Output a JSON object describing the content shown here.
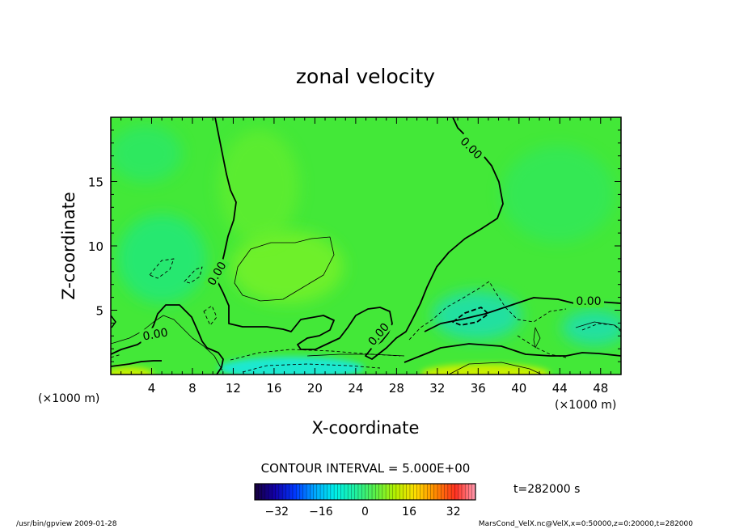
{
  "chart_data": {
    "type": "heatmap",
    "title": "zonal velocity",
    "xlabel": "X-coordinate",
    "ylabel": "Z-coordinate",
    "x_unit_label": "(×1000 m)",
    "z_unit_label": "(×1000 m)",
    "xlim": [
      0,
      50
    ],
    "zlim": [
      0,
      20
    ],
    "x_ticks": [
      4,
      8,
      12,
      16,
      20,
      24,
      28,
      32,
      36,
      40,
      44,
      48
    ],
    "z_ticks": [
      5,
      10,
      15
    ],
    "contour_interval_text": "CONTOUR INTERVAL = 5.000E+00",
    "contour_label": "0.00",
    "time_text": "t=282000 s",
    "colorbar": {
      "range": [
        -40,
        40
      ],
      "ticks": [
        -32,
        -16,
        0,
        16,
        32
      ],
      "colors": [
        "#16003a",
        "#1200a8",
        "#0038ff",
        "#00a8ff",
        "#00f0e8",
        "#1ef0a0",
        "#5af048",
        "#b4f000",
        "#ffdc00",
        "#ff8a00",
        "#ff3020",
        "#ff9ab0"
      ]
    },
    "field_colors": {
      "background": "#43e838",
      "light_patch": "#6ef02c",
      "faint_blue_patch": "#27e870",
      "blue_patch": "#20e0a0",
      "cyan_strip": "#1ee8d0",
      "yellow_strip": "#c8f000"
    }
  },
  "footer": {
    "left": "/usr/bin/gpview   2009-01-28",
    "right": "MarsCond_VelX.nc@VelX,x=0:50000,z=0:20000,t=282000"
  }
}
